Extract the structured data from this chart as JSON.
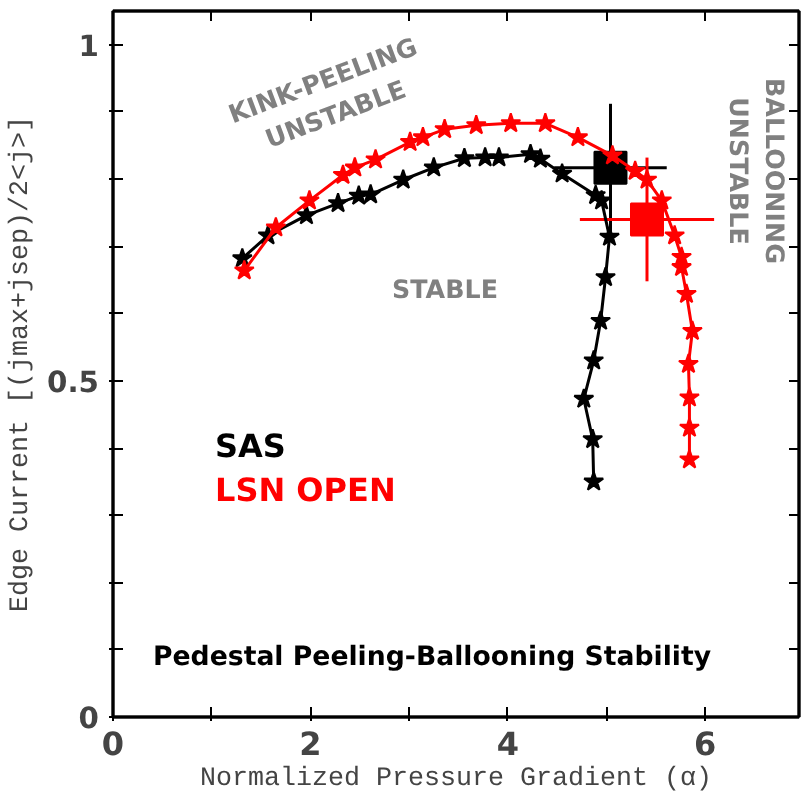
{
  "chart_data": {
    "type": "line",
    "title": "Pedestal Peeling-Ballooning Stability",
    "xlabel": "Normalized Pressure Gradient (α)",
    "ylabel": "Edge Current [(jmax+jsep)/2<j>]",
    "annotations": [
      "KINK-PEELING\nUNSTABLE",
      "STABLE",
      "BALLOONING\nUNSTABLE"
    ],
    "xlim": [
      0,
      6.95
    ],
    "ylim": [
      0,
      1.05
    ],
    "xticks": [
      0,
      {
        "value": 1,
        "label": null
      },
      2,
      {
        "value": 3,
        "label": null
      },
      4,
      {
        "value": 5,
        "label": null
      },
      6
    ],
    "yticks": [
      0,
      {
        "value": 0.1,
        "label": null
      },
      {
        "value": 0.2,
        "label": null
      },
      {
        "value": 0.3,
        "label": null
      },
      {
        "value": 0.4,
        "label": null
      },
      0.5,
      {
        "value": 0.6,
        "label": null
      },
      {
        "value": 0.7,
        "label": null
      },
      {
        "value": 0.8,
        "label": null
      },
      {
        "value": 0.9,
        "label": null
      },
      1
    ],
    "grid": false,
    "legend": "center left",
    "marker": "star",
    "line_style": "solid",
    "series": [
      {
        "name": "SAS",
        "color": "#000000",
        "x": [
          1.31,
          1.57,
          1.96,
          2.28,
          2.49,
          2.61,
          2.94,
          3.25,
          3.56,
          3.77,
          3.91,
          4.23,
          4.33,
          4.55,
          4.89,
          4.95,
          5.03,
          4.99,
          4.94,
          4.87,
          4.77,
          4.86,
          4.87
        ],
        "values": [
          0.682,
          0.716,
          0.746,
          0.764,
          0.775,
          0.777,
          0.799,
          0.817,
          0.831,
          0.832,
          0.832,
          0.837,
          0.83,
          0.808,
          0.776,
          0.768,
          0.714,
          0.654,
          0.589,
          0.53,
          0.473,
          0.413,
          0.35
        ]
      },
      {
        "name": "LSN OPEN",
        "color": "#ff0000",
        "x": [
          1.33,
          1.65,
          1.99,
          2.33,
          2.45,
          2.66,
          3.01,
          3.14,
          3.36,
          3.68,
          4.03,
          4.38,
          4.71,
          5.06,
          5.29,
          5.41,
          5.56,
          5.69,
          5.76,
          5.76,
          5.81,
          5.87,
          5.83,
          5.84,
          5.84,
          5.84
        ],
        "values": [
          0.664,
          0.728,
          0.768,
          0.806,
          0.817,
          0.829,
          0.855,
          0.862,
          0.874,
          0.88,
          0.883,
          0.883,
          0.862,
          0.835,
          0.812,
          0.799,
          0.768,
          0.716,
          0.684,
          0.669,
          0.629,
          0.574,
          0.525,
          0.475,
          0.43,
          0.383
        ]
      },
      {
        "type": "scatter",
        "marker": "square",
        "color": "#000000",
        "x": [
          5.04
        ],
        "values": [
          0.817
        ],
        "errors": [
          0.095
        ],
        "xerrors": [
          0.57
        ]
      },
      {
        "type": "scatter",
        "marker": "square",
        "color": "#ff0000",
        "x": [
          5.41
        ],
        "values": [
          0.74
        ],
        "errors": [
          0.092
        ],
        "xerrors": [
          0.68
        ]
      }
    ]
  }
}
